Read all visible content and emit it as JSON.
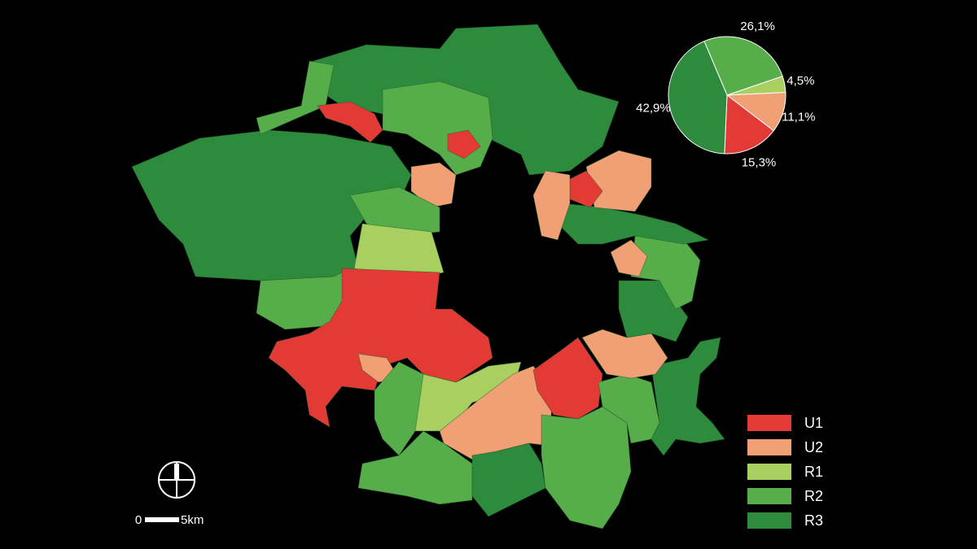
{
  "chart_data": {
    "type": "pie",
    "values": [
      26.1,
      4.5,
      11.1,
      15.3,
      42.9
    ],
    "value_labels": [
      "26,1%",
      "4,5%",
      "11,1%",
      "15,3%",
      "42,9%"
    ],
    "colors": [
      "#57ad4a",
      "#a8cf5f",
      "#f0a074",
      "#e33a35",
      "#2e8b3e"
    ]
  },
  "legend": [
    {
      "label": "U1",
      "color": "#e33a35"
    },
    {
      "label": "U2",
      "color": "#f0a074"
    },
    {
      "label": "R1",
      "color": "#a8cf5f"
    },
    {
      "label": "R2",
      "color": "#57ad4a"
    },
    {
      "label": "R3",
      "color": "#2e8b3e"
    }
  ],
  "scale_bar": {
    "start": "0",
    "end": "5km"
  }
}
